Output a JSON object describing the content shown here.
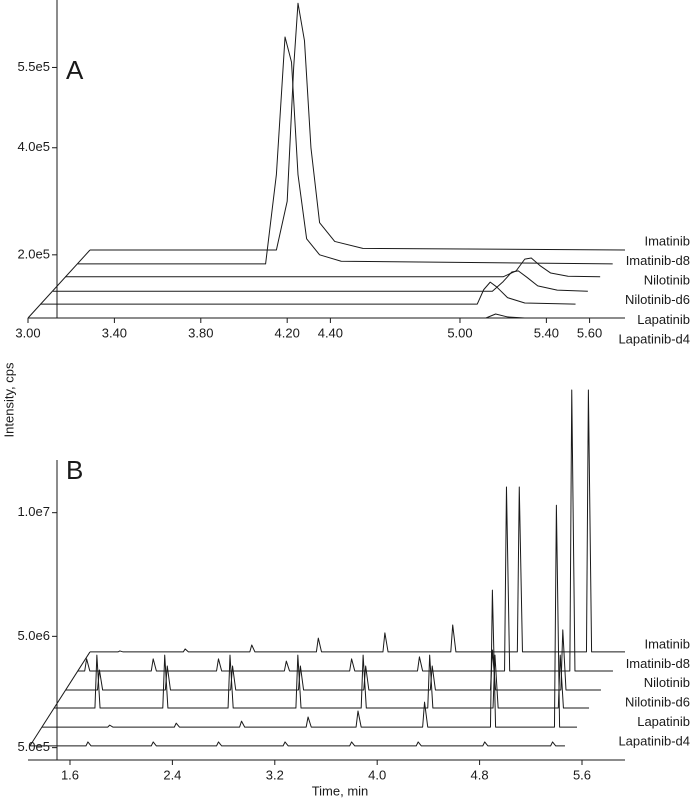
{
  "chart_data": [
    {
      "type": "line",
      "panel": "A",
      "color": "#1a1a1a",
      "xlim": [
        3,
        5.764
      ],
      "ylim": [
        82000,
        676000
      ],
      "xticks": [
        {
          "value": 3,
          "label": "3.00"
        },
        {
          "value": 3.4,
          "label": "3.40"
        },
        {
          "value": 3.8,
          "label": "3.80"
        },
        {
          "value": 4.2,
          "label": "4.20"
        },
        {
          "value": 4.4,
          "label": "4.40"
        },
        {
          "value": 5,
          "label": "5.00"
        },
        {
          "value": 5.4,
          "label": "5.40"
        },
        {
          "value": 5.6,
          "label": "5.60"
        }
      ],
      "yticks": [
        {
          "value": 550000,
          "label": "5.5e5"
        },
        {
          "value": 400000,
          "label": "4.0e5"
        },
        {
          "value": 200000,
          "label": "2.0e5"
        }
      ],
      "series": [
        {
          "name": "Imatinib",
          "x": [
            3.287,
            4.15,
            4.2,
            4.23,
            4.25,
            4.28,
            4.31,
            4.35,
            4.42,
            4.55,
            5.764
          ],
          "values": [
            209000,
            209000,
            300000,
            550000,
            670000,
            600000,
            400000,
            260000,
            225000,
            212000,
            209000
          ]
        },
        {
          "name": "Imatinib-d8",
          "x": [
            3.23,
            4.1,
            4.15,
            4.19,
            4.22,
            4.25,
            4.29,
            4.35,
            4.45,
            5.707
          ],
          "values": [
            183000,
            183000,
            350000,
            607000,
            560000,
            350000,
            230000,
            200000,
            188000,
            183000
          ]
        },
        {
          "name": "Nilotinib",
          "x": [
            3.172,
            5.2,
            5.26,
            5.3,
            5.33,
            5.37,
            5.42,
            5.5,
            5.649
          ],
          "values": [
            159000,
            159000,
            170000,
            192000,
            194000,
            180000,
            166000,
            160000,
            159000
          ]
        },
        {
          "name": "Nilotinib-d6",
          "x": [
            3.115,
            5.15,
            5.2,
            5.24,
            5.27,
            5.31,
            5.36,
            5.45,
            5.592
          ],
          "values": [
            132000,
            132000,
            150000,
            168000,
            170000,
            158000,
            142000,
            134000,
            132000
          ]
        },
        {
          "name": "Lapatinib",
          "x": [
            3.057,
            5.08,
            5.11,
            5.14,
            5.17,
            5.22,
            5.3,
            5.535
          ],
          "values": [
            108000,
            108000,
            135000,
            149000,
            140000,
            120000,
            110000,
            108000
          ]
        },
        {
          "name": "Lapatinib-d4",
          "x": [
            3,
            5.12,
            5.165,
            5.22,
            5.3,
            5.477
          ],
          "values": [
            82000,
            82000,
            89500,
            84000,
            82000,
            82000
          ]
        }
      ]
    },
    {
      "type": "line",
      "panel": "B",
      "color": "#1a1a1a",
      "ylabel": "Intensity, cps",
      "xlabel": "Time, min",
      "xlim": [
        1.272,
        5.936
      ],
      "ylim": [
        0,
        12130000
      ],
      "xticks": [
        1.6,
        2.4,
        3.2,
        {
          "value": 4,
          "label": "4.0"
        },
        4.8,
        5.6
      ],
      "yticks": [
        {
          "value": 10000000,
          "label": "1.0e7"
        },
        {
          "value": 5000000,
          "label": "5.0e6"
        },
        {
          "value": 500000,
          "label": "5.0e5"
        }
      ],
      "series": [
        {
          "name": "Imatinib",
          "x": [
            1.756,
            1.975,
            1.99,
            2.015,
            2.485,
            2.5,
            2.525,
            3.005,
            3.02,
            3.045,
            3.525,
            3.54,
            3.565,
            4.045,
            4.06,
            4.085,
            4.575,
            4.59,
            4.615,
            5.095,
            5.11,
            5.135,
            5.635,
            5.65,
            5.675,
            5.936
          ],
          "values": [
            4370000,
            4370000,
            4410000,
            4370000,
            4370000,
            4490000,
            4370000,
            4370000,
            4650000,
            4370000,
            4370000,
            4930000,
            4370000,
            4370000,
            5140000,
            4370000,
            4370000,
            5460000,
            4370000,
            4370000,
            11040000,
            4370000,
            4370000,
            14960000,
            4370000,
            4370000
          ]
        },
        {
          "name": "Imatinib-d8",
          "x": [
            1.662,
            1.715,
            1.73,
            1.755,
            2.235,
            2.25,
            2.275,
            2.745,
            2.76,
            2.785,
            3.275,
            3.29,
            3.315,
            3.785,
            3.8,
            3.825,
            4.315,
            4.33,
            4.355,
            4.995,
            5.01,
            5.035,
            5.505,
            5.52,
            5.545,
            5.842
          ],
          "values": [
            3600000,
            3600000,
            4090000,
            3600000,
            3600000,
            4090000,
            3600000,
            3600000,
            4090000,
            3600000,
            3600000,
            4000000,
            3600000,
            3600000,
            4090000,
            3600000,
            3600000,
            4170000,
            3600000,
            3600000,
            11040000,
            3600000,
            3600000,
            14960000,
            3600000,
            3600000
          ]
        },
        {
          "name": "Nilotinib",
          "x": [
            1.568,
            1.815,
            1.83,
            1.855,
            2.345,
            2.36,
            2.385,
            2.855,
            2.87,
            2.895,
            3.385,
            3.4,
            3.425,
            3.895,
            3.91,
            3.935,
            4.415,
            4.43,
            4.455,
            4.885,
            4.9,
            4.925,
            5.435,
            5.45,
            5.475,
            5.748
          ],
          "values": [
            2830000,
            2830000,
            3640000,
            2830000,
            2830000,
            3800000,
            2830000,
            2830000,
            3800000,
            2830000,
            2830000,
            3800000,
            2830000,
            2830000,
            3800000,
            2830000,
            2830000,
            3800000,
            2830000,
            2830000,
            4450000,
            2830000,
            2830000,
            5260000,
            2830000,
            2830000
          ]
        },
        {
          "name": "Nilotinib-d6",
          "x": [
            1.475,
            1.795,
            1.81,
            1.835,
            2.325,
            2.34,
            2.365,
            2.835,
            2.85,
            2.875,
            3.365,
            3.38,
            3.405,
            3.875,
            3.89,
            3.915,
            4.395,
            4.41,
            4.435,
            4.905,
            4.92,
            4.945,
            5.415,
            5.43,
            5.455,
            5.655
          ],
          "values": [
            2100000,
            2100000,
            4240000,
            2100000,
            2100000,
            4240000,
            2100000,
            2100000,
            4240000,
            2100000,
            2100000,
            4240000,
            2100000,
            2100000,
            4240000,
            2100000,
            2100000,
            4240000,
            2100000,
            2100000,
            4240000,
            2100000,
            2100000,
            4240000,
            2100000,
            2100000
          ]
        },
        {
          "name": "Lapatinib",
          "x": [
            1.381,
            1.895,
            1.91,
            1.935,
            2.415,
            2.43,
            2.455,
            2.925,
            2.94,
            2.965,
            3.445,
            3.46,
            3.485,
            3.835,
            3.85,
            3.875,
            4.355,
            4.37,
            4.395,
            4.885,
            4.9,
            4.925,
            5.385,
            5.4,
            5.425,
            5.561
          ],
          "values": [
            1330000,
            1330000,
            1410000,
            1330000,
            1330000,
            1490000,
            1330000,
            1330000,
            1570000,
            1330000,
            1330000,
            1740000,
            1330000,
            1330000,
            1980000,
            1330000,
            1330000,
            2340000,
            1330000,
            1330000,
            6870000,
            1330000,
            1330000,
            10300000,
            1330000,
            1330000
          ]
        },
        {
          "name": "Lapatinib-d4",
          "x": [
            1.287,
            1.725,
            1.74,
            1.765,
            2.235,
            2.25,
            2.275,
            2.745,
            2.76,
            2.785,
            3.265,
            3.28,
            3.305,
            3.785,
            3.8,
            3.825,
            4.305,
            4.32,
            4.345,
            4.825,
            4.84,
            4.865,
            5.355,
            5.37,
            5.395,
            5.467
          ],
          "values": [
            570000,
            570000,
            730000,
            570000,
            570000,
            730000,
            570000,
            570000,
            730000,
            570000,
            570000,
            730000,
            570000,
            570000,
            730000,
            570000,
            570000,
            730000,
            570000,
            570000,
            730000,
            570000,
            570000,
            730000,
            570000,
            570000
          ]
        }
      ]
    }
  ]
}
